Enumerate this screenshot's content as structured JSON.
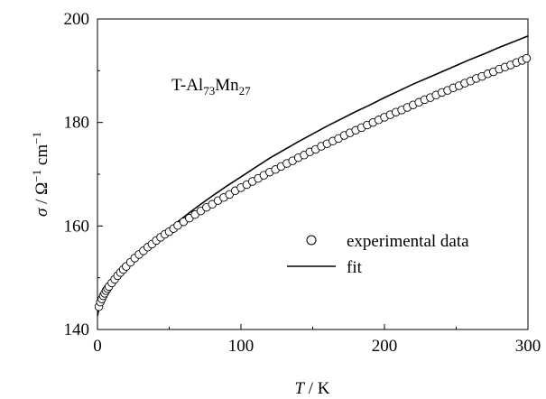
{
  "chart_data": {
    "type": "scatter",
    "annotation": {
      "prefix": "T-Al",
      "sub1": "73",
      "mid": "Mn",
      "sub2": "27"
    },
    "xlabel": {
      "italic": "T",
      "rest": " / K"
    },
    "ylabel": {
      "sigma": "σ",
      "omega": " / Ω",
      "sup1": "−1",
      "cm": " cm",
      "sup2": "−1"
    },
    "xlim": [
      0,
      300
    ],
    "ylim": [
      140,
      200
    ],
    "xticks": [
      "0",
      "100",
      "200",
      "300"
    ],
    "yticks": [
      "140",
      "160",
      "180",
      "200"
    ],
    "grid": false,
    "legend": {
      "placement": "lower-right",
      "entries": [
        "experimental data",
        "fit"
      ]
    },
    "series": [
      {
        "name": "experimental data",
        "marker": "open-circle",
        "x": [
          1,
          2,
          3,
          4,
          5,
          6,
          7,
          8,
          10,
          12,
          14,
          16,
          18,
          20,
          23,
          26,
          29,
          32,
          35,
          38,
          41,
          44,
          47,
          50,
          53,
          56,
          60,
          64,
          68,
          72,
          76,
          80,
          84,
          88,
          92,
          96,
          100,
          104,
          108,
          112,
          116,
          120,
          124,
          128,
          132,
          136,
          140,
          144,
          148,
          152,
          156,
          160,
          164,
          168,
          172,
          176,
          180,
          184,
          188,
          192,
          196,
          200,
          204,
          208,
          212,
          216,
          220,
          224,
          228,
          232,
          236,
          240,
          244,
          248,
          252,
          256,
          260,
          264,
          268,
          272,
          276,
          280,
          284,
          288,
          292,
          296,
          299
        ],
        "y": [
          144.4,
          145.3,
          145.9,
          146.5,
          147.0,
          147.5,
          147.9,
          148.3,
          149.0,
          149.7,
          150.4,
          151.0,
          151.6,
          152.2,
          153.0,
          153.8,
          154.5,
          155.2,
          155.9,
          156.5,
          157.2,
          157.8,
          158.4,
          158.9,
          159.5,
          160.1,
          160.8,
          161.5,
          162.2,
          162.9,
          163.6,
          164.2,
          164.9,
          165.5,
          166.1,
          166.8,
          167.4,
          168.0,
          168.6,
          169.2,
          169.8,
          170.4,
          170.9,
          171.5,
          172.1,
          172.6,
          173.2,
          173.7,
          174.3,
          174.8,
          175.4,
          175.9,
          176.4,
          176.9,
          177.5,
          178.0,
          178.5,
          179.0,
          179.5,
          180.0,
          180.5,
          181.0,
          181.5,
          182.0,
          182.4,
          182.9,
          183.4,
          183.9,
          184.4,
          184.8,
          185.3,
          185.8,
          186.2,
          186.7,
          187.1,
          187.6,
          188.0,
          188.5,
          188.9,
          189.4,
          189.8,
          190.3,
          190.7,
          191.1,
          191.6,
          192.0,
          192.4
        ]
      },
      {
        "name": "fit",
        "marker": "line",
        "x": [
          0,
          2,
          4,
          6,
          8,
          10,
          15,
          20,
          25,
          30,
          40,
          50,
          60,
          70,
          80,
          90,
          100,
          110,
          120,
          130,
          140,
          150,
          160,
          170,
          180,
          190,
          200,
          210,
          220,
          230,
          240,
          250,
          260,
          270,
          280,
          290,
          300
        ],
        "y": [
          142.6,
          145.2,
          146.4,
          147.3,
          148.1,
          148.8,
          150.5,
          152.0,
          153.4,
          154.8,
          157.2,
          159.5,
          161.7,
          163.8,
          165.8,
          167.7,
          169.5,
          171.3,
          173.1,
          174.7,
          176.3,
          177.8,
          179.3,
          180.7,
          182.1,
          183.4,
          184.8,
          186.1,
          187.4,
          188.6,
          189.8,
          191.0,
          192.2,
          193.3,
          194.5,
          195.6,
          196.7
        ]
      }
    ]
  }
}
